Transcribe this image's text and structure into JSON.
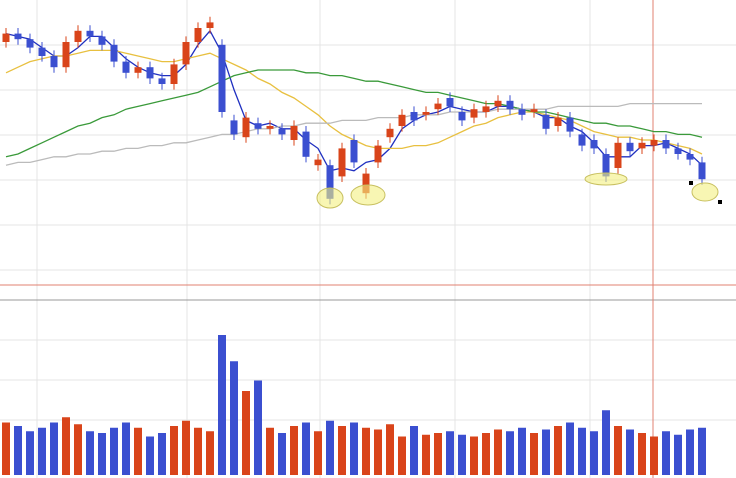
{
  "chart_data": {
    "type": "candlestick",
    "ylim": [
      0,
      100
    ],
    "volume_ylim": [
      0,
      100
    ],
    "up_color": "#d9441a",
    "down_color": "#3b4fd0",
    "open": [
      85,
      88,
      86,
      83,
      80,
      76,
      85,
      89,
      87,
      84,
      78,
      74,
      76,
      72,
      70,
      77,
      85,
      90,
      84,
      57,
      51,
      56,
      54,
      54,
      50,
      53,
      41,
      41,
      37,
      50,
      31,
      42,
      51,
      55,
      60,
      59,
      61,
      65,
      60,
      58,
      60,
      62,
      64,
      61,
      60,
      59,
      55,
      58,
      52,
      50,
      45,
      40,
      49,
      47,
      48,
      50,
      47,
      45,
      42
    ],
    "high": [
      90,
      90,
      88,
      85,
      82,
      87,
      91,
      91,
      89,
      86,
      80,
      78,
      78,
      74,
      79,
      87,
      92,
      94,
      86,
      59,
      60,
      58,
      57,
      56,
      57,
      55,
      45,
      43,
      49,
      52,
      40,
      50,
      56,
      61,
      62,
      62,
      65,
      67,
      62,
      63,
      64,
      66,
      66,
      63,
      63,
      61,
      60,
      60,
      54,
      52,
      47,
      51,
      51,
      51,
      52,
      52,
      49,
      47,
      44
    ],
    "low": [
      83,
      84,
      81,
      78,
      74,
      74,
      83,
      85,
      82,
      76,
      72,
      72,
      70,
      68,
      68,
      75,
      83,
      88,
      58,
      50,
      49,
      52,
      52,
      50,
      48,
      42,
      39,
      27,
      35,
      40,
      29,
      40,
      49,
      53,
      55,
      57,
      59,
      60,
      55,
      56,
      58,
      60,
      59,
      57,
      58,
      52,
      53,
      51,
      46,
      45,
      35,
      38,
      44,
      45,
      46,
      45,
      43,
      41,
      34
    ],
    "close": [
      88,
      86,
      83,
      80,
      76,
      85,
      89,
      87,
      84,
      78,
      74,
      76,
      72,
      70,
      77,
      85,
      90,
      92,
      60,
      52,
      58,
      54,
      55,
      52,
      55,
      44,
      43,
      29,
      47,
      42,
      38,
      48,
      54,
      59,
      57,
      60,
      63,
      62,
      57,
      61,
      62,
      64,
      61,
      59,
      61,
      54,
      58,
      53,
      48,
      47,
      37,
      49,
      46,
      49,
      50,
      47,
      45,
      43,
      36
    ],
    "volume": [
      30,
      28,
      25,
      27,
      30,
      33,
      29,
      25,
      24,
      27,
      30,
      27,
      22,
      24,
      28,
      31,
      27,
      25,
      80,
      65,
      48,
      54,
      27,
      24,
      28,
      30,
      25,
      31,
      28,
      30,
      27,
      26,
      29,
      22,
      28,
      23,
      24,
      25,
      23,
      22,
      24,
      26,
      25,
      27,
      24,
      26,
      28,
      30,
      27,
      25,
      37,
      28,
      26,
      24,
      22,
      25,
      23,
      26,
      27
    ],
    "lines": [
      {
        "color": "#2030c0",
        "values": [
          88,
          87,
          86,
          83,
          80,
          80,
          83,
          87,
          87,
          83,
          79,
          76,
          74,
          73,
          73,
          77,
          84,
          89,
          81,
          68,
          57,
          55,
          56,
          54,
          54,
          50,
          47,
          39,
          40,
          39,
          42,
          43,
          47,
          54,
          57,
          59,
          60,
          62,
          61,
          60,
          60,
          62,
          62,
          61,
          60,
          58,
          58,
          55,
          53,
          49,
          44,
          44,
          44,
          48,
          48,
          49,
          47,
          45,
          41
        ]
      },
      {
        "color": "#e8c040",
        "values": [
          74,
          76,
          78,
          79,
          80,
          80,
          81,
          82,
          82,
          82,
          81,
          80,
          79,
          78,
          78,
          79,
          80,
          81,
          79,
          77,
          75,
          72,
          70,
          67,
          65,
          62,
          59,
          55,
          52,
          50,
          48,
          47,
          47,
          47,
          48,
          48,
          49,
          51,
          53,
          55,
          56,
          58,
          59,
          60,
          60,
          59,
          58,
          57,
          55,
          53,
          52,
          51,
          51,
          50,
          50,
          49,
          48,
          47,
          45
        ]
      },
      {
        "color": "#3a9a3a",
        "values": [
          44,
          45,
          47,
          49,
          51,
          53,
          55,
          56,
          58,
          59,
          61,
          62,
          63,
          64,
          65,
          66,
          67,
          69,
          71,
          73,
          74,
          75,
          75,
          75,
          75,
          74,
          74,
          73,
          73,
          72,
          71,
          71,
          70,
          69,
          68,
          67,
          67,
          66,
          65,
          64,
          63,
          63,
          62,
          61,
          60,
          60,
          59,
          58,
          57,
          56,
          56,
          55,
          55,
          54,
          53,
          53,
          52,
          52,
          51
        ]
      },
      {
        "color": "#bbbbbb",
        "values": [
          41,
          42,
          42,
          43,
          44,
          44,
          45,
          45,
          46,
          46,
          47,
          47,
          48,
          48,
          49,
          49,
          50,
          51,
          52,
          52,
          53,
          54,
          54,
          55,
          55,
          56,
          56,
          56,
          57,
          57,
          57,
          58,
          58,
          58,
          59,
          59,
          59,
          60,
          60,
          60,
          60,
          61,
          61,
          61,
          61,
          61,
          62,
          62,
          62,
          62,
          62,
          62,
          63,
          63,
          63,
          63,
          63,
          63,
          63
        ]
      }
    ]
  }
}
